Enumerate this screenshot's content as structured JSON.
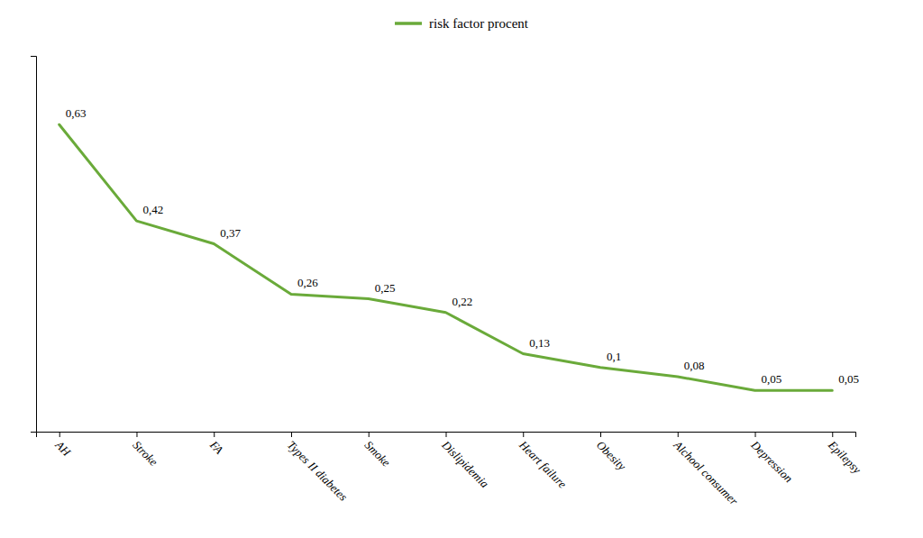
{
  "chart_data": {
    "type": "line",
    "categories": [
      "AH",
      "Stroke",
      "FA",
      "Types II diabetes",
      "Smoke",
      "Dislipidemia",
      "Heart failure",
      "Obesity",
      "Alchool consumer",
      "Depression",
      "Epilepsy"
    ],
    "series": [
      {
        "name": "risk factor procent",
        "color": "#6aaa3a",
        "values": [
          0.63,
          0.42,
          0.37,
          0.26,
          0.25,
          0.22,
          0.13,
          0.1,
          0.08,
          0.05,
          0.05
        ],
        "value_labels": [
          "0,63",
          "0,42",
          "0,37",
          "0,26",
          "0,25",
          "0,22",
          "0,13",
          "0,1",
          "0,08",
          "0,05",
          "0,05"
        ]
      }
    ],
    "ylim": [
      -0.04,
      0.78
    ],
    "legend": "top",
    "data_labels": true,
    "tick_labels": "x",
    "grid": false
  }
}
